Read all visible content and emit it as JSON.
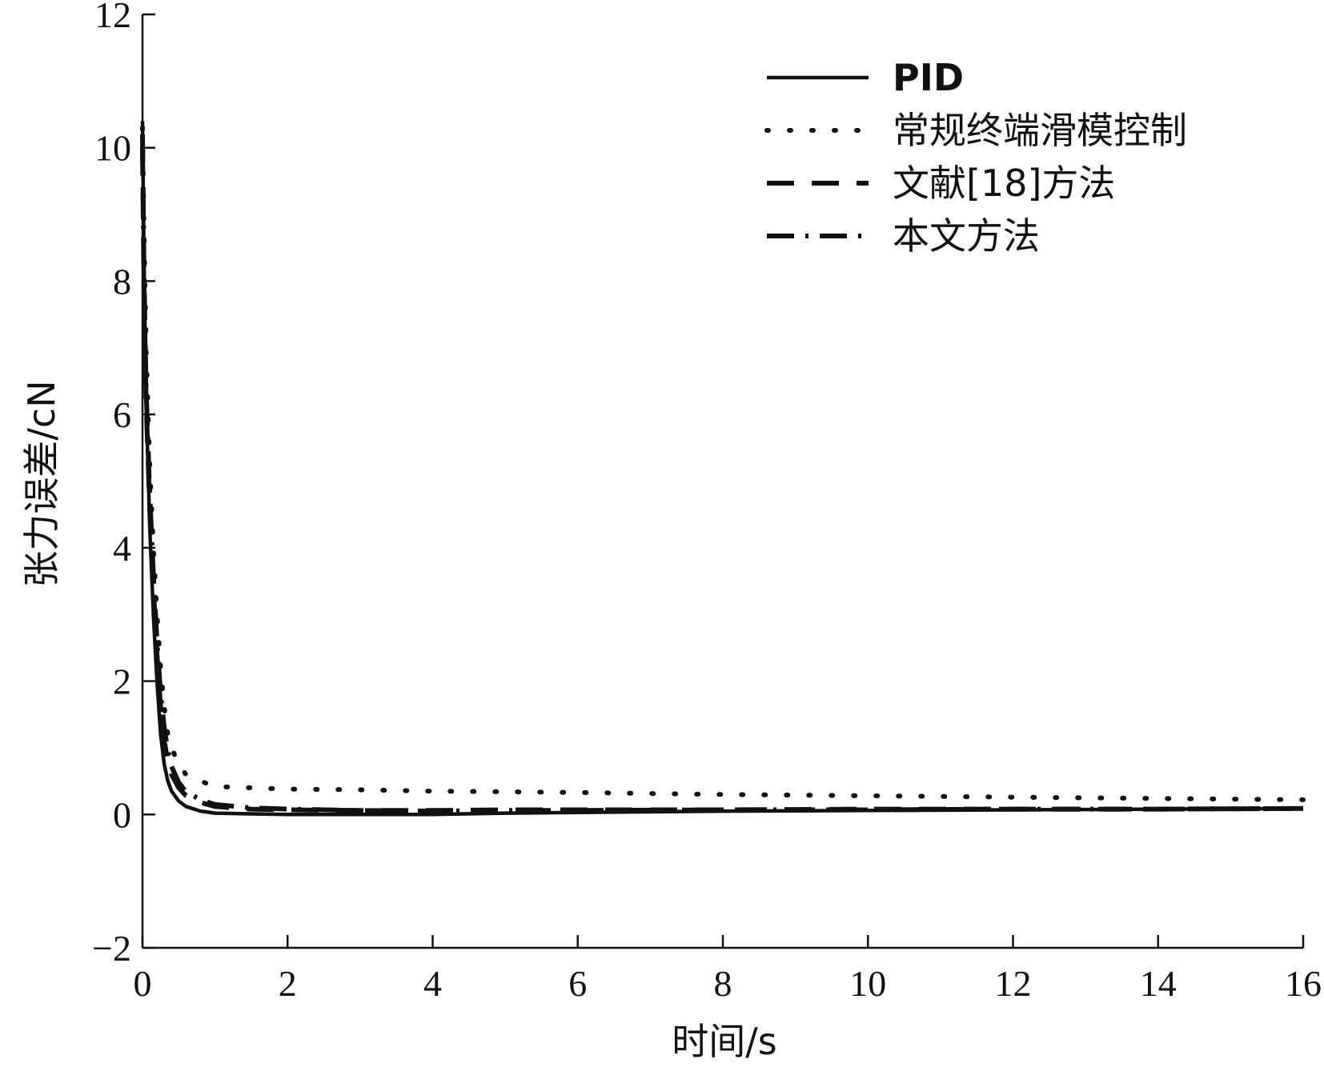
{
  "chart_data": {
    "type": "line",
    "xlabel": "时间/s",
    "ylabel": "张力误差/cN",
    "xlim": [
      0,
      16
    ],
    "ylim": [
      -2,
      12
    ],
    "x_ticks": [
      0,
      2,
      4,
      6,
      8,
      10,
      12,
      14,
      16
    ],
    "y_ticks": [
      -2,
      0,
      2,
      4,
      6,
      8,
      10,
      12
    ],
    "x_tick_labels": [
      "0",
      "2",
      "4",
      "6",
      "8",
      "10",
      "12",
      "14",
      "16"
    ],
    "y_tick_labels": [
      "−2",
      "0",
      "2",
      "4",
      "6",
      "8",
      "10",
      "12"
    ],
    "grid": false,
    "legend_position": "top-right",
    "series": [
      {
        "name": "PID",
        "style": "solid",
        "x": [
          0,
          0.02,
          0.05,
          0.1,
          0.15,
          0.2,
          0.25,
          0.3,
          0.35,
          0.4,
          0.5,
          0.6,
          0.8,
          1.0,
          1.5,
          2,
          3,
          4,
          5,
          6,
          8,
          10,
          12,
          14,
          16
        ],
        "y": [
          10.4,
          8.4,
          6.2,
          4.3,
          3.0,
          2.0,
          1.2,
          0.75,
          0.5,
          0.35,
          0.2,
          0.12,
          0.05,
          0.02,
          0.01,
          0.0,
          0.0,
          0.0,
          0.02,
          0.03,
          0.05,
          0.06,
          0.07,
          0.08,
          0.09
        ]
      },
      {
        "name": "常规终端滑模控制",
        "style": "dotted",
        "x": [
          0,
          0.02,
          0.05,
          0.1,
          0.15,
          0.2,
          0.25,
          0.3,
          0.35,
          0.4,
          0.5,
          0.6,
          0.8,
          1.0,
          1.5,
          2,
          3,
          4,
          5,
          6,
          8,
          10,
          12,
          14,
          16
        ],
        "y": [
          10.3,
          8.8,
          7.0,
          5.2,
          4.0,
          3.0,
          2.2,
          1.6,
          1.2,
          1.0,
          0.75,
          0.6,
          0.5,
          0.42,
          0.4,
          0.38,
          0.37,
          0.35,
          0.34,
          0.33,
          0.3,
          0.28,
          0.26,
          0.24,
          0.22
        ]
      },
      {
        "name": "文献[18]方法",
        "style": "dashed",
        "x": [
          0,
          0.02,
          0.05,
          0.1,
          0.15,
          0.2,
          0.25,
          0.3,
          0.35,
          0.4,
          0.5,
          0.6,
          0.8,
          1.0,
          1.5,
          2,
          3,
          4,
          5,
          6,
          8,
          10,
          12,
          14,
          16
        ],
        "y": [
          10.0,
          8.0,
          6.2,
          4.6,
          3.4,
          2.4,
          1.6,
          1.1,
          0.8,
          0.6,
          0.4,
          0.28,
          0.18,
          0.12,
          0.08,
          0.07,
          0.06,
          0.06,
          0.07,
          0.07,
          0.07,
          0.08,
          0.08,
          0.08,
          0.09
        ]
      },
      {
        "name": "本文方法",
        "style": "dashdot",
        "x": [
          0,
          0.02,
          0.05,
          0.1,
          0.15,
          0.2,
          0.25,
          0.3,
          0.35,
          0.4,
          0.5,
          0.6,
          0.8,
          1.0,
          1.5,
          2,
          3,
          4,
          5,
          6,
          8,
          10,
          12,
          14,
          16
        ],
        "y": [
          10.2,
          8.2,
          6.4,
          4.8,
          3.6,
          2.6,
          1.8,
          1.3,
          0.95,
          0.72,
          0.48,
          0.34,
          0.22,
          0.15,
          0.1,
          0.08,
          0.06,
          0.05,
          0.06,
          0.06,
          0.07,
          0.07,
          0.08,
          0.08,
          0.09
        ]
      }
    ]
  }
}
